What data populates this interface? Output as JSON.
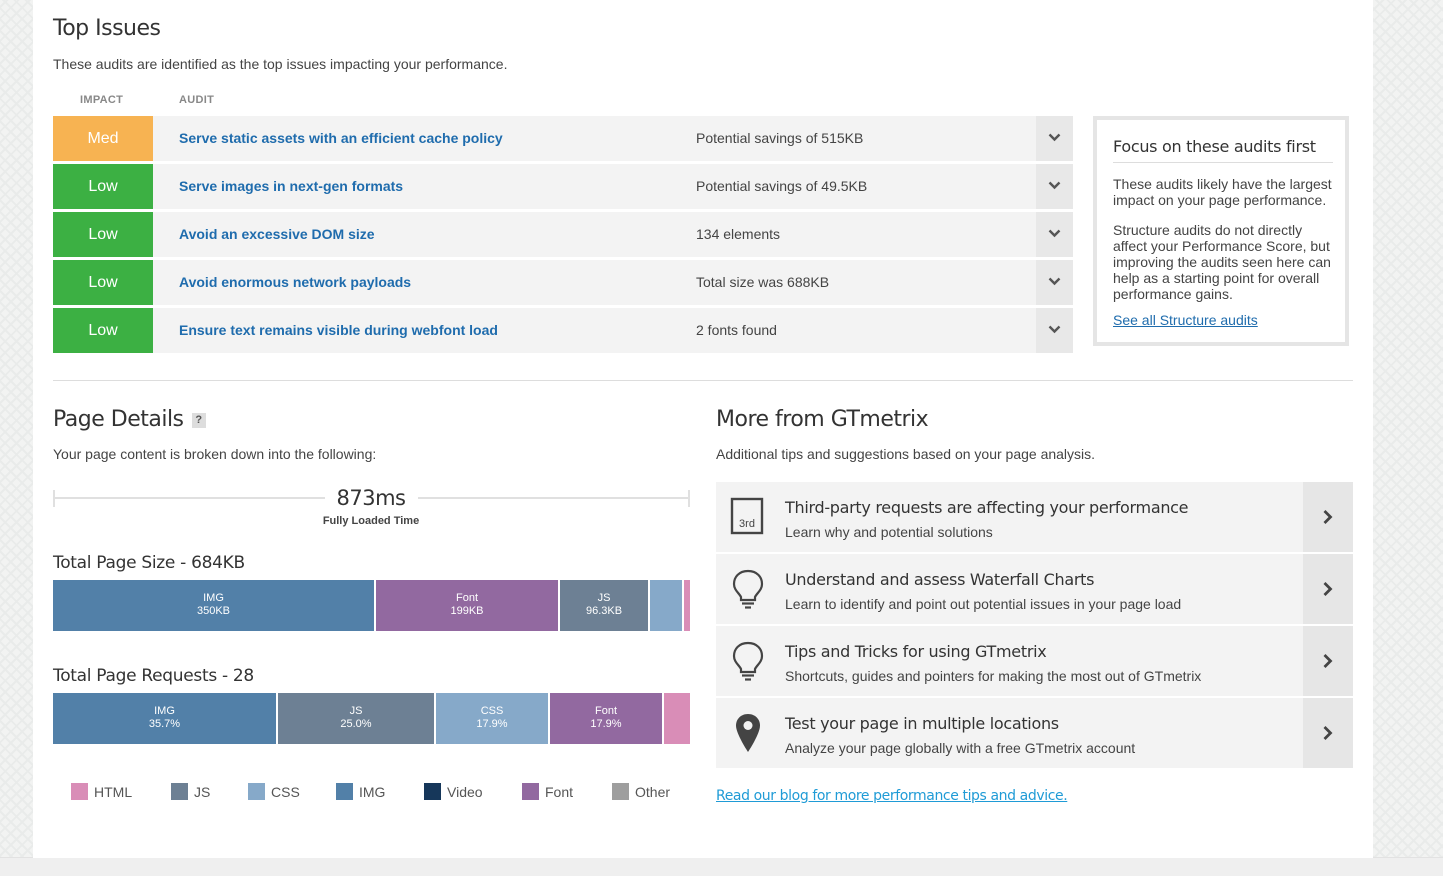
{
  "top_issues": {
    "title": "Top Issues",
    "subtitle": "These audits are identified as the top issues impacting your performance.",
    "col_impact": "IMPACT",
    "col_audit": "AUDIT",
    "rows": [
      {
        "impact": "Med",
        "title": "Serve static assets with an efficient cache policy",
        "detail": "Potential savings of 515KB"
      },
      {
        "impact": "Low",
        "title": "Serve images in next-gen formats",
        "detail": "Potential savings of 49.5KB"
      },
      {
        "impact": "Low",
        "title": "Avoid an excessive DOM size",
        "detail": "134 elements"
      },
      {
        "impact": "Low",
        "title": "Avoid enormous network payloads",
        "detail": "Total size was 688KB"
      },
      {
        "impact": "Low",
        "title": "Ensure text remains visible during webfont load",
        "detail": "2 fonts found"
      }
    ],
    "impact_colors": {
      "Med": "#f7b352",
      "Low": "#3cb043"
    }
  },
  "focus": {
    "title": "Focus on these audits first",
    "p1": "These audits likely have the largest impact on your page performance.",
    "p2": "Structure audits do not directly affect your Performance Score, but improving the audits seen here can help as a starting point for overall performance gains.",
    "link": "See all Structure audits"
  },
  "page_details": {
    "title": "Page Details",
    "help": "?",
    "subtitle": "Your page content is broken down into the following:",
    "fully_loaded_value": "873ms",
    "fully_loaded_label": "Fully Loaded Time",
    "size_title": "Total Page Size - 684KB",
    "size_segments": [
      {
        "type": "IMG",
        "value": "350KB",
        "color": "#5280a8"
      },
      {
        "type": "Font",
        "value": "199KB",
        "color": "#9269a0"
      },
      {
        "type": "JS",
        "value": "96.3KB",
        "color": "#6d8094"
      },
      {
        "type": "CSS",
        "value": "",
        "color": "#86a9c9"
      },
      {
        "type": "HTML",
        "value": "",
        "color": "#d98db7"
      }
    ],
    "requests_title": "Total Page Requests - 28",
    "request_segments": [
      {
        "type": "IMG",
        "value": "35.7%",
        "color": "#5280a8"
      },
      {
        "type": "JS",
        "value": "25.0%",
        "color": "#6d8094"
      },
      {
        "type": "CSS",
        "value": "17.9%",
        "color": "#86a9c9"
      },
      {
        "type": "Font",
        "value": "17.9%",
        "color": "#9269a0"
      },
      {
        "type": "HTML",
        "value": "",
        "color": "#d98db7"
      }
    ],
    "legend": [
      {
        "label": "HTML",
        "color": "#d98db7"
      },
      {
        "label": "JS",
        "color": "#6d8094"
      },
      {
        "label": "CSS",
        "color": "#86a9c9"
      },
      {
        "label": "IMG",
        "color": "#5280a8"
      },
      {
        "label": "Video",
        "color": "#16375a"
      },
      {
        "label": "Font",
        "color": "#9269a0"
      },
      {
        "label": "Other",
        "color": "#9e9e9e"
      }
    ]
  },
  "more": {
    "title": "More from GTmetrix",
    "subtitle": "Additional tips and suggestions based on your page analysis.",
    "tips": [
      {
        "icon": "third-party-icon",
        "icon_text": "3rd",
        "title": "Third-party requests are affecting your performance",
        "desc": "Learn why and potential solutions"
      },
      {
        "icon": "lightbulb-icon",
        "title": "Understand and assess Waterfall Charts",
        "desc": "Learn to identify and point out potential issues in your page load"
      },
      {
        "icon": "lightbulb-icon",
        "title": "Tips and Tricks for using GTmetrix",
        "desc": "Shortcuts, guides and pointers for making the most out of GTmetrix"
      },
      {
        "icon": "location-pin-icon",
        "title": "Test your page in multiple locations",
        "desc": "Analyze your page globally with a free GTmetrix account"
      }
    ],
    "blog_link": "Read our blog for more performance tips and advice."
  }
}
